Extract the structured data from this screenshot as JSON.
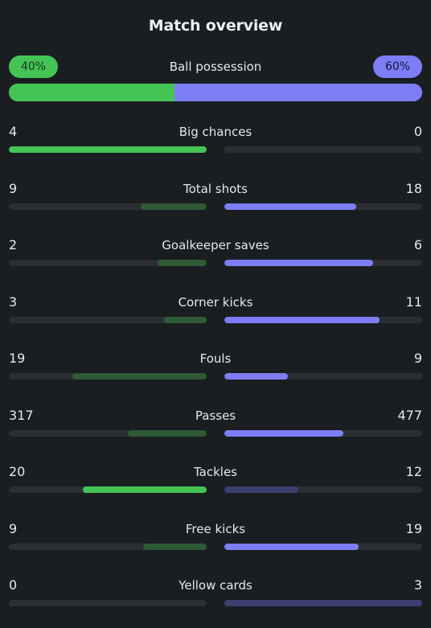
{
  "title": "Match overview",
  "colors": {
    "home": "#45c456",
    "home_dim": "#2e5a36",
    "away": "#7c7ef5",
    "away_dim": "#3c4070",
    "track": "#2b2f33",
    "background": "#1b1e21"
  },
  "possession": {
    "label": "Ball possession",
    "home_text": "40%",
    "away_text": "60%",
    "home_fraction": 0.4,
    "away_fraction": 0.6
  },
  "stats": [
    {
      "label": "Big chances",
      "home": "4",
      "away": "0",
      "home_fill": 1.0,
      "away_fill": 0.0,
      "highlight": "home"
    },
    {
      "label": "Total shots",
      "home": "9",
      "away": "18",
      "home_fill": 0.333,
      "away_fill": 0.667,
      "highlight": "away"
    },
    {
      "label": "Goalkeeper saves",
      "home": "2",
      "away": "6",
      "home_fill": 0.25,
      "away_fill": 0.75,
      "highlight": "away"
    },
    {
      "label": "Corner kicks",
      "home": "3",
      "away": "11",
      "home_fill": 0.214,
      "away_fill": 0.786,
      "highlight": "away"
    },
    {
      "label": "Fouls",
      "home": "19",
      "away": "9",
      "home_fill": 0.679,
      "away_fill": 0.321,
      "highlight": "away"
    },
    {
      "label": "Passes",
      "home": "317",
      "away": "477",
      "home_fill": 0.399,
      "away_fill": 0.601,
      "highlight": "away"
    },
    {
      "label": "Tackles",
      "home": "20",
      "away": "12",
      "home_fill": 0.625,
      "away_fill": 0.375,
      "highlight": "home"
    },
    {
      "label": "Free kicks",
      "home": "9",
      "away": "19",
      "home_fill": 0.321,
      "away_fill": 0.679,
      "highlight": "away"
    },
    {
      "label": "Yellow cards",
      "home": "0",
      "away": "3",
      "home_fill": 0.0,
      "away_fill": 1.0,
      "highlight": "home"
    }
  ]
}
